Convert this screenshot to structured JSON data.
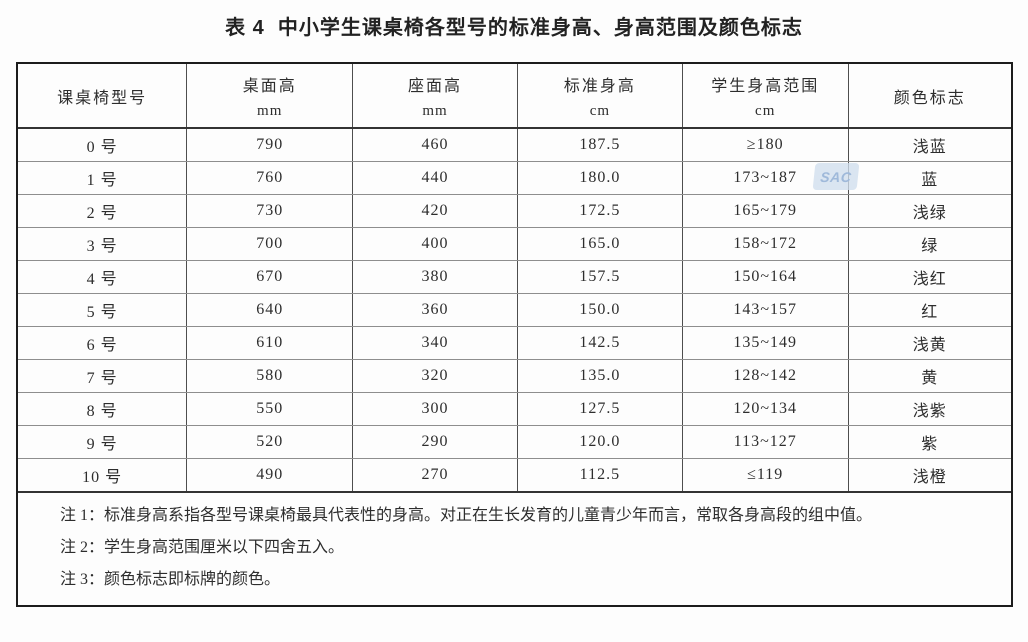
{
  "title": "表 4  中小学生课桌椅各型号的标准身高、身高范围及颜色标志",
  "table": {
    "columns": [
      {
        "label": "课桌椅型号",
        "unit": ""
      },
      {
        "label": "桌面高",
        "unit": "mm"
      },
      {
        "label": "座面高",
        "unit": "mm"
      },
      {
        "label": "标准身高",
        "unit": "cm"
      },
      {
        "label": "学生身高范围",
        "unit": "cm"
      },
      {
        "label": "颜色标志",
        "unit": ""
      }
    ],
    "rows": [
      {
        "model": "0 号",
        "desk_height_mm": "790",
        "seat_height_mm": "460",
        "standard_height_cm": "187.5",
        "height_range_cm": "≥180",
        "color_mark": "浅蓝"
      },
      {
        "model": "1 号",
        "desk_height_mm": "760",
        "seat_height_mm": "440",
        "standard_height_cm": "180.0",
        "height_range_cm": "173~187",
        "color_mark": "蓝"
      },
      {
        "model": "2 号",
        "desk_height_mm": "730",
        "seat_height_mm": "420",
        "standard_height_cm": "172.5",
        "height_range_cm": "165~179",
        "color_mark": "浅绿"
      },
      {
        "model": "3 号",
        "desk_height_mm": "700",
        "seat_height_mm": "400",
        "standard_height_cm": "165.0",
        "height_range_cm": "158~172",
        "color_mark": "绿"
      },
      {
        "model": "4 号",
        "desk_height_mm": "670",
        "seat_height_mm": "380",
        "standard_height_cm": "157.5",
        "height_range_cm": "150~164",
        "color_mark": "浅红"
      },
      {
        "model": "5 号",
        "desk_height_mm": "640",
        "seat_height_mm": "360",
        "standard_height_cm": "150.0",
        "height_range_cm": "143~157",
        "color_mark": "红"
      },
      {
        "model": "6 号",
        "desk_height_mm": "610",
        "seat_height_mm": "340",
        "standard_height_cm": "142.5",
        "height_range_cm": "135~149",
        "color_mark": "浅黄"
      },
      {
        "model": "7 号",
        "desk_height_mm": "580",
        "seat_height_mm": "320",
        "standard_height_cm": "135.0",
        "height_range_cm": "128~142",
        "color_mark": "黄"
      },
      {
        "model": "8 号",
        "desk_height_mm": "550",
        "seat_height_mm": "300",
        "standard_height_cm": "127.5",
        "height_range_cm": "120~134",
        "color_mark": "浅紫"
      },
      {
        "model": "9 号",
        "desk_height_mm": "520",
        "seat_height_mm": "290",
        "standard_height_cm": "120.0",
        "height_range_cm": "113~127",
        "color_mark": "紫"
      },
      {
        "model": "10 号",
        "desk_height_mm": "490",
        "seat_height_mm": "270",
        "standard_height_cm": "112.5",
        "height_range_cm": "≤119",
        "color_mark": "浅橙"
      }
    ]
  },
  "notes": [
    {
      "label": "注 1：",
      "text": "标准身高系指各型号课桌椅最具代表性的身高。对正在生长发育的儿童青少年而言，常取各身高段的组中值。"
    },
    {
      "label": "注 2：",
      "text": "学生身高范围厘米以下四舍五入。"
    },
    {
      "label": "注 3：",
      "text": "颜色标志即标牌的颜色。"
    }
  ],
  "watermark": "SAC",
  "colors": {
    "outer_border": "#1c1c1c",
    "inner_vertical_line": "#4e4e4e",
    "row_line": "#8e8e8e",
    "text": "#2d2d2d",
    "watermark_bg": "#cfdeed",
    "watermark_text": "#9fb9da",
    "page_bg": "#fdfdfd"
  }
}
